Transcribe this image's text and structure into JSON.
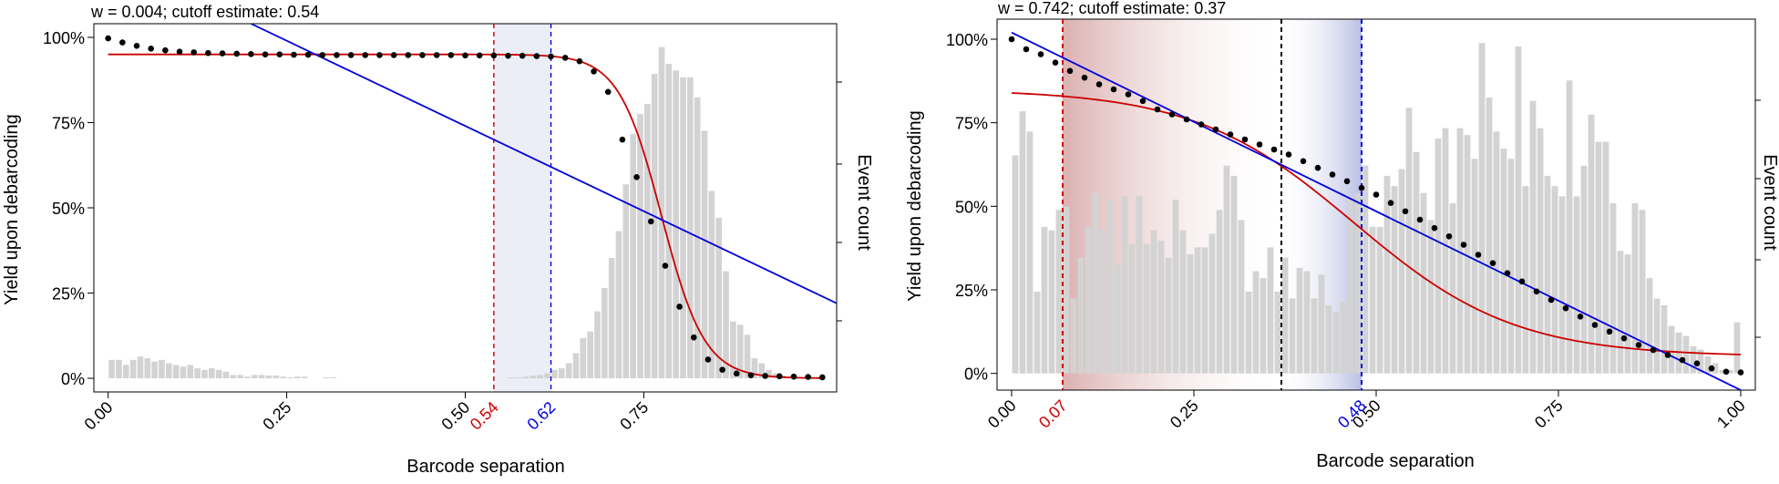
{
  "chart_data": [
    {
      "type": "bar+scatter+line",
      "title": "w = 0.004; cutoff estimate: 0.54",
      "xlabel": "Barcode separation",
      "ylabel": "Yield upon debarcoding",
      "y2label": "Event count",
      "xlim": [
        -0.02,
        1.02
      ],
      "ylim": [
        -0.04,
        1.04
      ],
      "grid": false,
      "x_ticks": [
        0,
        0.25,
        0.5,
        0.75
      ],
      "x_tick_labels": [
        "0.00",
        "0.25",
        "0.50",
        "0.75"
      ],
      "y_ticks": [
        0,
        0.25,
        0.5,
        0.75,
        1.0
      ],
      "y_tick_labels": [
        "0%",
        "25%",
        "50%",
        "75%",
        "100%"
      ],
      "highlight_band": {
        "from": 0.54,
        "to": 0.62,
        "color": "#7b83c9"
      },
      "cutoff_lines": [
        {
          "x": 0.54,
          "label": "0.54",
          "color": "#cc0000"
        },
        {
          "x": 0.62,
          "label": "0.62",
          "color": "#0000dd"
        }
      ],
      "histogram": {
        "bin_width": 0.01,
        "start": 0.0,
        "values": [
          0.055,
          0.055,
          0.04,
          0.055,
          0.065,
          0.06,
          0.05,
          0.055,
          0.045,
          0.04,
          0.035,
          0.04,
          0.03,
          0.025,
          0.03,
          0.025,
          0.02,
          0.01,
          0.01,
          0.005,
          0.01,
          0.01,
          0.008,
          0.008,
          0.005,
          0.003,
          0.005,
          0.005,
          0,
          0,
          0.003,
          0.003,
          0,
          0,
          0,
          0,
          0,
          0,
          0,
          0,
          0,
          0,
          0,
          0,
          0,
          0,
          0,
          0,
          0,
          0,
          0,
          0,
          0,
          0,
          0,
          0,
          0.003,
          0.003,
          0.005,
          0.008,
          0.01,
          0.015,
          0.025,
          0.03,
          0.045,
          0.075,
          0.12,
          0.14,
          0.2,
          0.27,
          0.36,
          0.44,
          0.58,
          0.73,
          0.79,
          0.82,
          0.91,
          0.99,
          0.94,
          0.92,
          0.9,
          0.9,
          0.84,
          0.74,
          0.56,
          0.48,
          0.32,
          0.17,
          0.16,
          0.13,
          0.06,
          0.045,
          0.025,
          0.015,
          0.008,
          0.004,
          0.003,
          0.002,
          0.001,
          0.001
        ],
        "color": "#d3d3d3"
      },
      "points": {
        "x": [
          0,
          0.02,
          0.04,
          0.06,
          0.08,
          0.1,
          0.12,
          0.14,
          0.16,
          0.18,
          0.2,
          0.22,
          0.24,
          0.26,
          0.28,
          0.3,
          0.32,
          0.34,
          0.36,
          0.38,
          0.4,
          0.42,
          0.44,
          0.46,
          0.48,
          0.5,
          0.52,
          0.54,
          0.56,
          0.58,
          0.6,
          0.62,
          0.64,
          0.66,
          0.68,
          0.7,
          0.72,
          0.74,
          0.76,
          0.78,
          0.8,
          0.82,
          0.84,
          0.86,
          0.88,
          0.9,
          0.92,
          0.94,
          0.96,
          0.98,
          1.0
        ],
        "y": [
          0.997,
          0.985,
          0.975,
          0.967,
          0.962,
          0.958,
          0.956,
          0.954,
          0.953,
          0.952,
          0.951,
          0.95,
          0.95,
          0.949,
          0.949,
          0.948,
          0.948,
          0.948,
          0.948,
          0.948,
          0.948,
          0.948,
          0.948,
          0.948,
          0.948,
          0.947,
          0.947,
          0.947,
          0.946,
          0.946,
          0.945,
          0.944,
          0.94,
          0.93,
          0.9,
          0.84,
          0.7,
          0.59,
          0.46,
          0.33,
          0.21,
          0.12,
          0.055,
          0.025,
          0.014,
          0.009,
          0.007,
          0.006,
          0.005,
          0.004,
          0.003
        ],
        "color": "#000000"
      },
      "series": [
        {
          "type": "sigmoid",
          "upper": 0.95,
          "lower": 0.0,
          "mid": 0.775,
          "scale": 0.03,
          "color": "#cc0000"
        },
        {
          "type": "linear",
          "points": [
            [
              0.2,
              1.04
            ],
            [
              1.02,
              0.22
            ]
          ],
          "color": "#0000dd"
        }
      ]
    },
    {
      "type": "bar+scatter+line",
      "title": "w = 0.742; cutoff estimate: 0.37",
      "xlabel": "Barcode separation",
      "ylabel": "Yield upon debarcoding",
      "y2label": "Event count",
      "xlim": [
        -0.02,
        1.02
      ],
      "ylim": [
        -0.05,
        1.06
      ],
      "grid": false,
      "x_ticks": [
        0,
        0.25,
        0.5,
        0.75,
        1.0
      ],
      "x_tick_labels": [
        "0.00",
        "0.25",
        "0.50",
        "0.75",
        "1.00"
      ],
      "y_ticks": [
        0,
        0.25,
        0.5,
        0.75,
        1.0
      ],
      "y_tick_labels": [
        "0%",
        "25%",
        "50%",
        "75%",
        "100%"
      ],
      "gradient_band": {
        "from": 0.07,
        "to": 0.48,
        "start_color": "#c47c7c",
        "end_color": "#8088cc",
        "fade_at": 0.37
      },
      "cutoff_lines": [
        {
          "x": 0.07,
          "label": "0.07",
          "color": "#cc0000"
        },
        {
          "x": 0.37,
          "label": "",
          "color": "#000000"
        },
        {
          "x": 0.48,
          "label": "0.48",
          "color": "#0000dd"
        }
      ],
      "histogram": {
        "bin_width": 0.01,
        "start": 0.0,
        "values": [
          0.64,
          0.77,
          0.71,
          0.24,
          0.43,
          0.42,
          0.48,
          0.49,
          0.22,
          0.34,
          0.43,
          0.53,
          0.42,
          0.51,
          0.32,
          0.52,
          0.38,
          0.52,
          0.38,
          0.42,
          0.39,
          0.34,
          0.51,
          0.42,
          0.35,
          0.37,
          0.37,
          0.41,
          0.48,
          0.61,
          0.58,
          0.45,
          0.24,
          0.3,
          0.28,
          0.37,
          0.24,
          0.34,
          0.22,
          0.31,
          0.3,
          0.22,
          0.29,
          0.2,
          0.18,
          0.21,
          0.52,
          0.53,
          0.61,
          0.43,
          0.43,
          0.58,
          0.55,
          0.6,
          0.78,
          0.65,
          0.53,
          0.45,
          0.69,
          0.72,
          0.5,
          0.72,
          0.7,
          0.63,
          0.97,
          0.81,
          0.71,
          0.66,
          0.63,
          0.96,
          0.55,
          0.8,
          0.72,
          0.58,
          0.55,
          0.52,
          0.86,
          0.52,
          0.61,
          0.76,
          0.68,
          0.68,
          0.5,
          0.36,
          0.35,
          0.5,
          0.48,
          0.28,
          0.22,
          0.2,
          0.14,
          0.12,
          0.11,
          0.08,
          0.07,
          0.05,
          0.03,
          0.01,
          0.01,
          0.15
        ],
        "color": "#d3d3d3"
      },
      "points": {
        "x": [
          0,
          0.02,
          0.04,
          0.06,
          0.08,
          0.1,
          0.12,
          0.14,
          0.16,
          0.18,
          0.2,
          0.22,
          0.24,
          0.26,
          0.28,
          0.3,
          0.32,
          0.34,
          0.36,
          0.38,
          0.4,
          0.42,
          0.44,
          0.46,
          0.48,
          0.5,
          0.52,
          0.54,
          0.56,
          0.58,
          0.6,
          0.62,
          0.64,
          0.66,
          0.68,
          0.7,
          0.72,
          0.74,
          0.76,
          0.78,
          0.8,
          0.82,
          0.84,
          0.86,
          0.88,
          0.9,
          0.92,
          0.94,
          0.96,
          0.98,
          1.0
        ],
        "y": [
          1.0,
          0.97,
          0.955,
          0.93,
          0.905,
          0.885,
          0.865,
          0.85,
          0.835,
          0.815,
          0.79,
          0.775,
          0.76,
          0.745,
          0.73,
          0.715,
          0.7,
          0.685,
          0.67,
          0.655,
          0.635,
          0.615,
          0.595,
          0.575,
          0.555,
          0.535,
          0.51,
          0.485,
          0.46,
          0.435,
          0.41,
          0.385,
          0.355,
          0.33,
          0.3,
          0.275,
          0.245,
          0.22,
          0.195,
          0.17,
          0.145,
          0.125,
          0.105,
          0.085,
          0.07,
          0.055,
          0.04,
          0.03,
          0.015,
          0.005,
          0.003
        ],
        "color": "#000000"
      },
      "series": [
        {
          "type": "sigmoid",
          "upper": 0.85,
          "lower": 0.05,
          "mid": 0.47,
          "scale": 0.11,
          "color": "#cc0000"
        },
        {
          "type": "linear",
          "points": [
            [
              0,
              1.02
            ],
            [
              1.0,
              -0.05
            ]
          ],
          "color": "#0000dd"
        }
      ]
    }
  ]
}
